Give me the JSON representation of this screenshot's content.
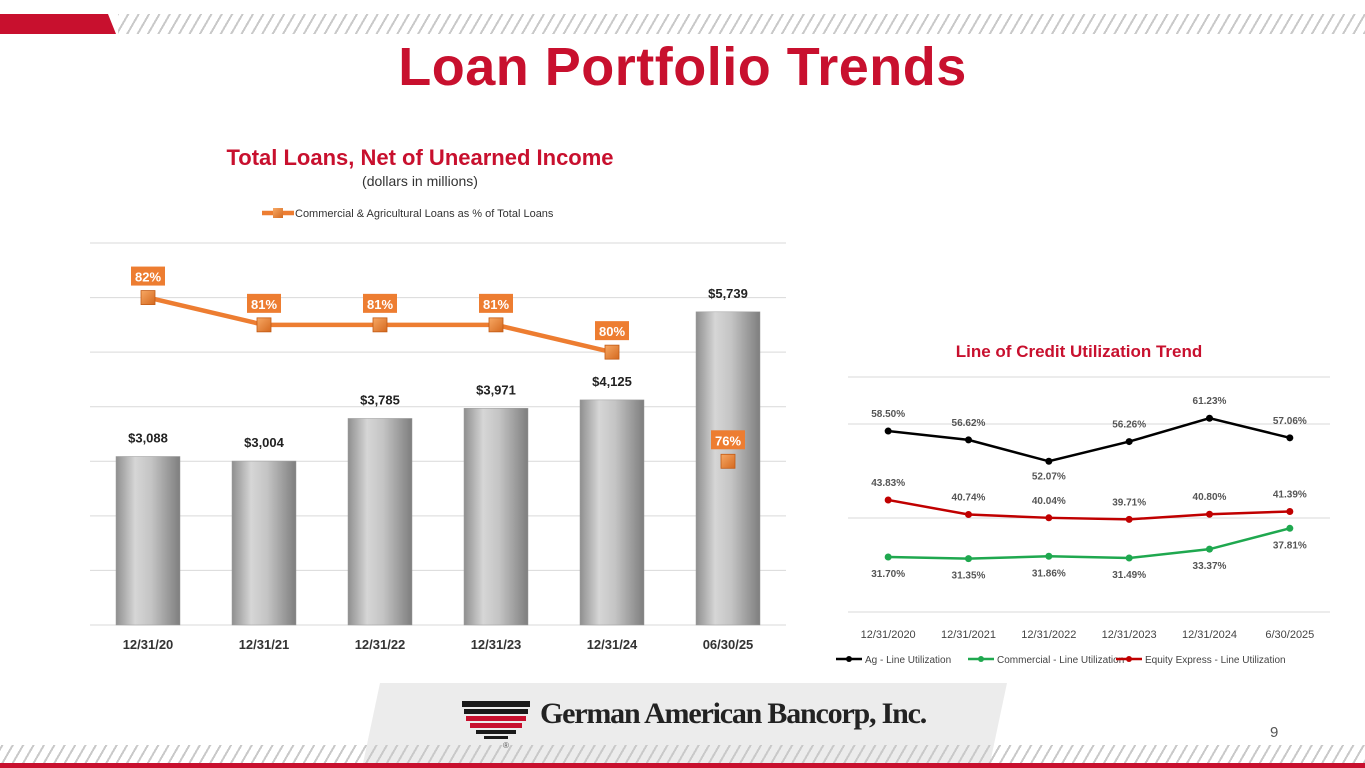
{
  "page": {
    "title": "Loan Portfolio Trends",
    "page_number": "9",
    "logo_text": "German American Bancorp, Inc.",
    "logo_mark_symbol": "®"
  },
  "colors": {
    "brand_red": "#c8102e",
    "bar_gray": "#bdbdbd",
    "line_orange": "#ed7d31",
    "ag_line": "#000000",
    "commercial_line": "#1fa84f",
    "equity_line": "#c00000"
  },
  "chart_data": [
    {
      "type": "bar",
      "title": "Total Loans, Net of Unearned Income",
      "subtitle": "(dollars in millions)",
      "categories": [
        "12/31/20",
        "12/31/21",
        "12/31/22",
        "12/31/23",
        "12/31/24",
        "06/30/25"
      ],
      "values": [
        3088,
        3004,
        3785,
        3971,
        4125,
        5739
      ],
      "value_labels": [
        "$3,088",
        "$3,004",
        "$3,785",
        "$3,971",
        "$4,125",
        "$5,739"
      ],
      "ylim": [
        0,
        7000
      ],
      "grid": true,
      "legend": "top",
      "series": [
        {
          "name": "Commercial & Agricultural Loans as % of Total Loans",
          "type": "line",
          "values": [
            82,
            81,
            81,
            81,
            80,
            76
          ],
          "labels": [
            "82%",
            "81%",
            "81%",
            "81%",
            "80%",
            "76%"
          ],
          "ylim": [
            70,
            84
          ]
        }
      ]
    },
    {
      "type": "line",
      "title": "Line of Credit Utilization Trend",
      "categories": [
        "12/31/2020",
        "12/31/2021",
        "12/31/2022",
        "12/31/2023",
        "12/31/2024",
        "6/30/2025"
      ],
      "ylim": [
        20,
        70
      ],
      "grid": true,
      "legend": "bottom",
      "series": [
        {
          "name": "Ag - Line Utilization",
          "values": [
            58.5,
            56.62,
            52.07,
            56.26,
            61.23,
            57.06
          ],
          "labels": [
            "58.50%",
            "56.62%",
            "52.07%",
            "56.26%",
            "61.23%",
            "57.06%"
          ]
        },
        {
          "name": "Commercial - Line Utilization",
          "values": [
            31.7,
            31.35,
            31.86,
            31.49,
            33.37,
            37.81
          ],
          "labels": [
            "31.70%",
            "31.35%",
            "31.86%",
            "31.49%",
            "33.37%",
            "37.81%"
          ]
        },
        {
          "name": "Equity Express - Line Utilization",
          "values": [
            43.83,
            40.74,
            40.04,
            39.71,
            40.8,
            41.39
          ],
          "labels": [
            "43.83%",
            "40.74%",
            "40.04%",
            "39.71%",
            "40.80%",
            "41.39%"
          ]
        }
      ]
    }
  ]
}
